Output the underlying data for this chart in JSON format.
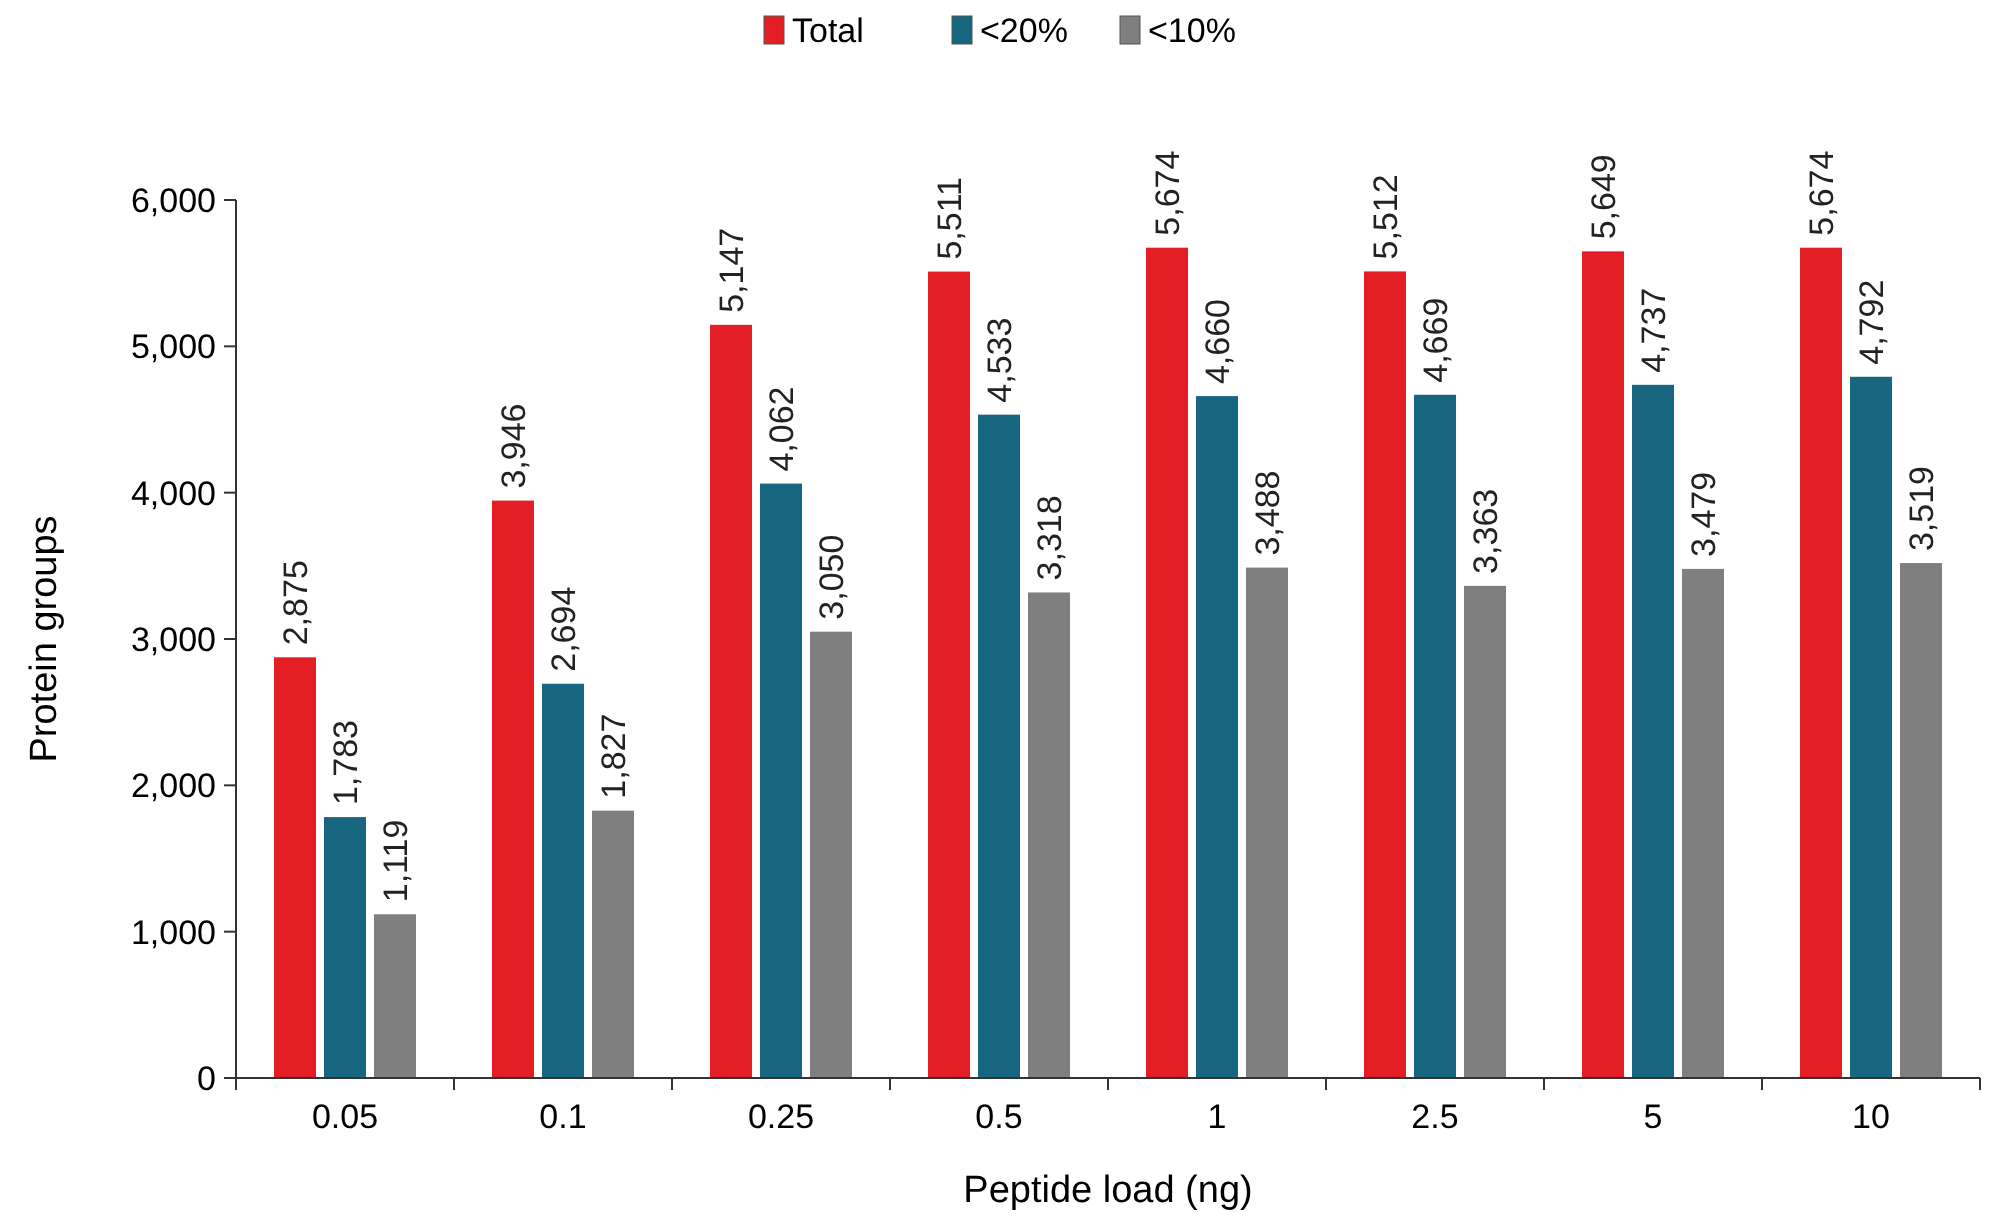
{
  "chart_data": {
    "type": "bar",
    "xlabel": "Peptide load (ng)",
    "ylabel": "Protein groups",
    "categories": [
      "0.05",
      "0.1",
      "0.25",
      "0.5",
      "1",
      "2.5",
      "5",
      "10"
    ],
    "series": [
      {
        "name": "Total",
        "color": "#e31e24",
        "values": [
          2875,
          3946,
          5147,
          5511,
          5674,
          5512,
          5649,
          5674
        ],
        "value_labels": [
          "2,875",
          "3,946",
          "5,147",
          "5,511",
          "5,674",
          "5,512",
          "5,649",
          "5,674"
        ]
      },
      {
        "name": "<20%",
        "color": "#17657f",
        "values": [
          1783,
          2694,
          4062,
          4533,
          4660,
          4669,
          4737,
          4792
        ],
        "value_labels": [
          "1,783",
          "2,694",
          "4,062",
          "4,533",
          "4,660",
          "4,669",
          "4,737",
          "4,792"
        ]
      },
      {
        "name": "<10%",
        "color": "#7f7f80",
        "values": [
          1119,
          1827,
          3050,
          3318,
          3488,
          3363,
          3479,
          3519
        ],
        "value_labels": [
          "1,119",
          "1,827",
          "3,050",
          "3,318",
          "3,488",
          "3,363",
          "3,479",
          "3,519"
        ]
      }
    ],
    "ylim": [
      0,
      6000
    ],
    "yticks": [
      {
        "value": 0,
        "label": "0"
      },
      {
        "value": 1000,
        "label": "1,000"
      },
      {
        "value": 2000,
        "label": "2,000"
      },
      {
        "value": 3000,
        "label": "3,000"
      },
      {
        "value": 4000,
        "label": "4,000"
      },
      {
        "value": 5000,
        "label": "5,000"
      },
      {
        "value": 6000,
        "label": "6,000"
      }
    ],
    "grid": false,
    "legend": "top"
  }
}
